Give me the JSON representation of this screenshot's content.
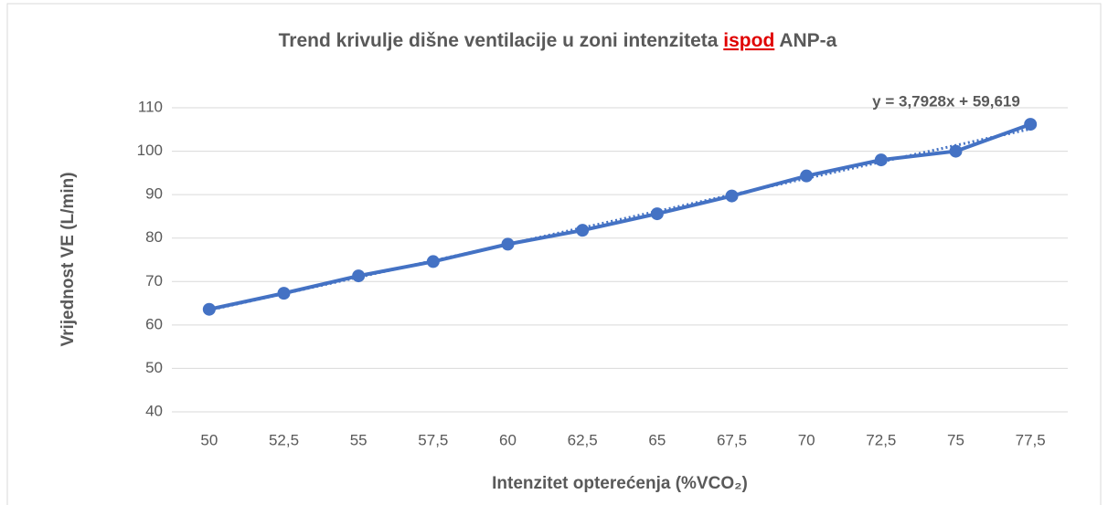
{
  "chart_data": {
    "type": "line",
    "title_parts": [
      "Trend krivulje dišne ventilacije u zoni intenziteta",
      "ispod",
      "ANP-a"
    ],
    "x_label": "Intenzitet opterećenja (%VCO₂)",
    "y_label": "Vrijednost VE (L/min)",
    "categories": [
      "50",
      "52,5",
      "55",
      "57,5",
      "60",
      "62,5",
      "65",
      "67,5",
      "70",
      "72,5",
      "75",
      "77,5"
    ],
    "series": [
      {
        "color": "#4472c4",
        "values": [
          63.6,
          67.3,
          71.3,
          74.6,
          78.6,
          81.8,
          85.6,
          89.7,
          94.3,
          98.0,
          100.0,
          106.2
        ]
      }
    ],
    "trendline": {
      "slope": 3.7928,
      "intercept": 59.619,
      "label": "y = 3,7928x + 59,619"
    },
    "ylim": [
      40,
      110
    ],
    "yticks": [
      40,
      50,
      60,
      70,
      80,
      90,
      100,
      110
    ],
    "grid": true
  }
}
